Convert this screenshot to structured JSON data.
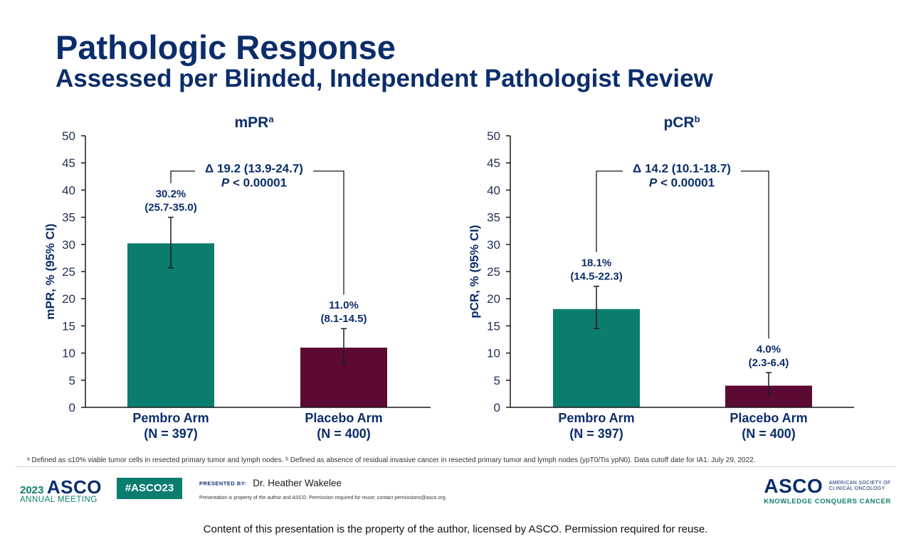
{
  "title": "Pathologic Response",
  "subtitle": "Assessed per Blinded, Independent Pathologist Review",
  "colors": {
    "navy": "#0b2d6b",
    "pembro": "#0b7d6e",
    "placebo": "#5c0a34",
    "axis": "#1a1a1a"
  },
  "chart_data": [
    {
      "type": "bar",
      "title": "mPR",
      "title_sup": "a",
      "ylabel": "mPR, % (95% CI)",
      "ylim": [
        0,
        50
      ],
      "yticks": [
        0,
        5,
        10,
        15,
        20,
        25,
        30,
        35,
        40,
        45,
        50
      ],
      "categories": [
        {
          "line1": "Pembro Arm",
          "line2": "(N = 397)"
        },
        {
          "line1": "Placebo Arm",
          "line2": "(N = 400)"
        }
      ],
      "values": [
        30.2,
        11.0
      ],
      "ci_low": [
        25.7,
        8.1
      ],
      "ci_high": [
        35.0,
        14.5
      ],
      "value_labels": [
        "30.2%",
        "11.0%"
      ],
      "ci_labels": [
        "(25.7-35.0)",
        "(8.1-14.5)"
      ],
      "bracket_y": 43.5,
      "delta_text": "Δ 19.2 (13.9-24.7)",
      "p_italic": "P",
      "p_text": " < 0.00001"
    },
    {
      "type": "bar",
      "title": "pCR",
      "title_sup": "b",
      "ylabel": "pCR, % (95% CI)",
      "ylim": [
        0,
        50
      ],
      "yticks": [
        0,
        5,
        10,
        15,
        20,
        25,
        30,
        35,
        40,
        45,
        50
      ],
      "categories": [
        {
          "line1": "Pembro Arm",
          "line2": "(N = 397)"
        },
        {
          "line1": "Placebo Arm",
          "line2": "(N = 400)"
        }
      ],
      "values": [
        18.1,
        4.0
      ],
      "ci_low": [
        14.5,
        2.3
      ],
      "ci_high": [
        22.3,
        6.4
      ],
      "value_labels": [
        "18.1%",
        "4.0%"
      ],
      "ci_labels": [
        "(14.5-22.3)",
        "(2.3-6.4)"
      ],
      "bracket_y": 43.5,
      "delta_text": "Δ 14.2 (10.1-18.7)",
      "p_italic": "P",
      "p_text": " < 0.00001"
    }
  ],
  "footnote": "ᵃ Defined as ≤10% viable tumor cells in resected primary tumor and lymph nodes. ᵇ Defined as absence of residual invasive cancer in resected primary tumor and lymph nodes (ypT0/Tis ypN0). Data cutoff date for IA1: July 29, 2022.",
  "footer": {
    "year": "2023",
    "asco": "ASCO",
    "annual_meeting": "ANNUAL MEETING",
    "hashtag": "#ASCO23",
    "presented_by": "PRESENTED BY:",
    "presenter": "Dr. Heather Wakelee",
    "property_note": "Presentation is property of the author and ASCO. Permission required for reuse; contact permissions@asco.org.",
    "asco_right": "ASCO",
    "society_line1": "AMERICAN SOCIETY OF",
    "society_line2": "CLINICAL ONCOLOGY",
    "tagline": "KNOWLEDGE CONQUERS CANCER"
  },
  "bottom_notice": "Content of this presentation is the property of the author, licensed by ASCO. Permission required for reuse."
}
